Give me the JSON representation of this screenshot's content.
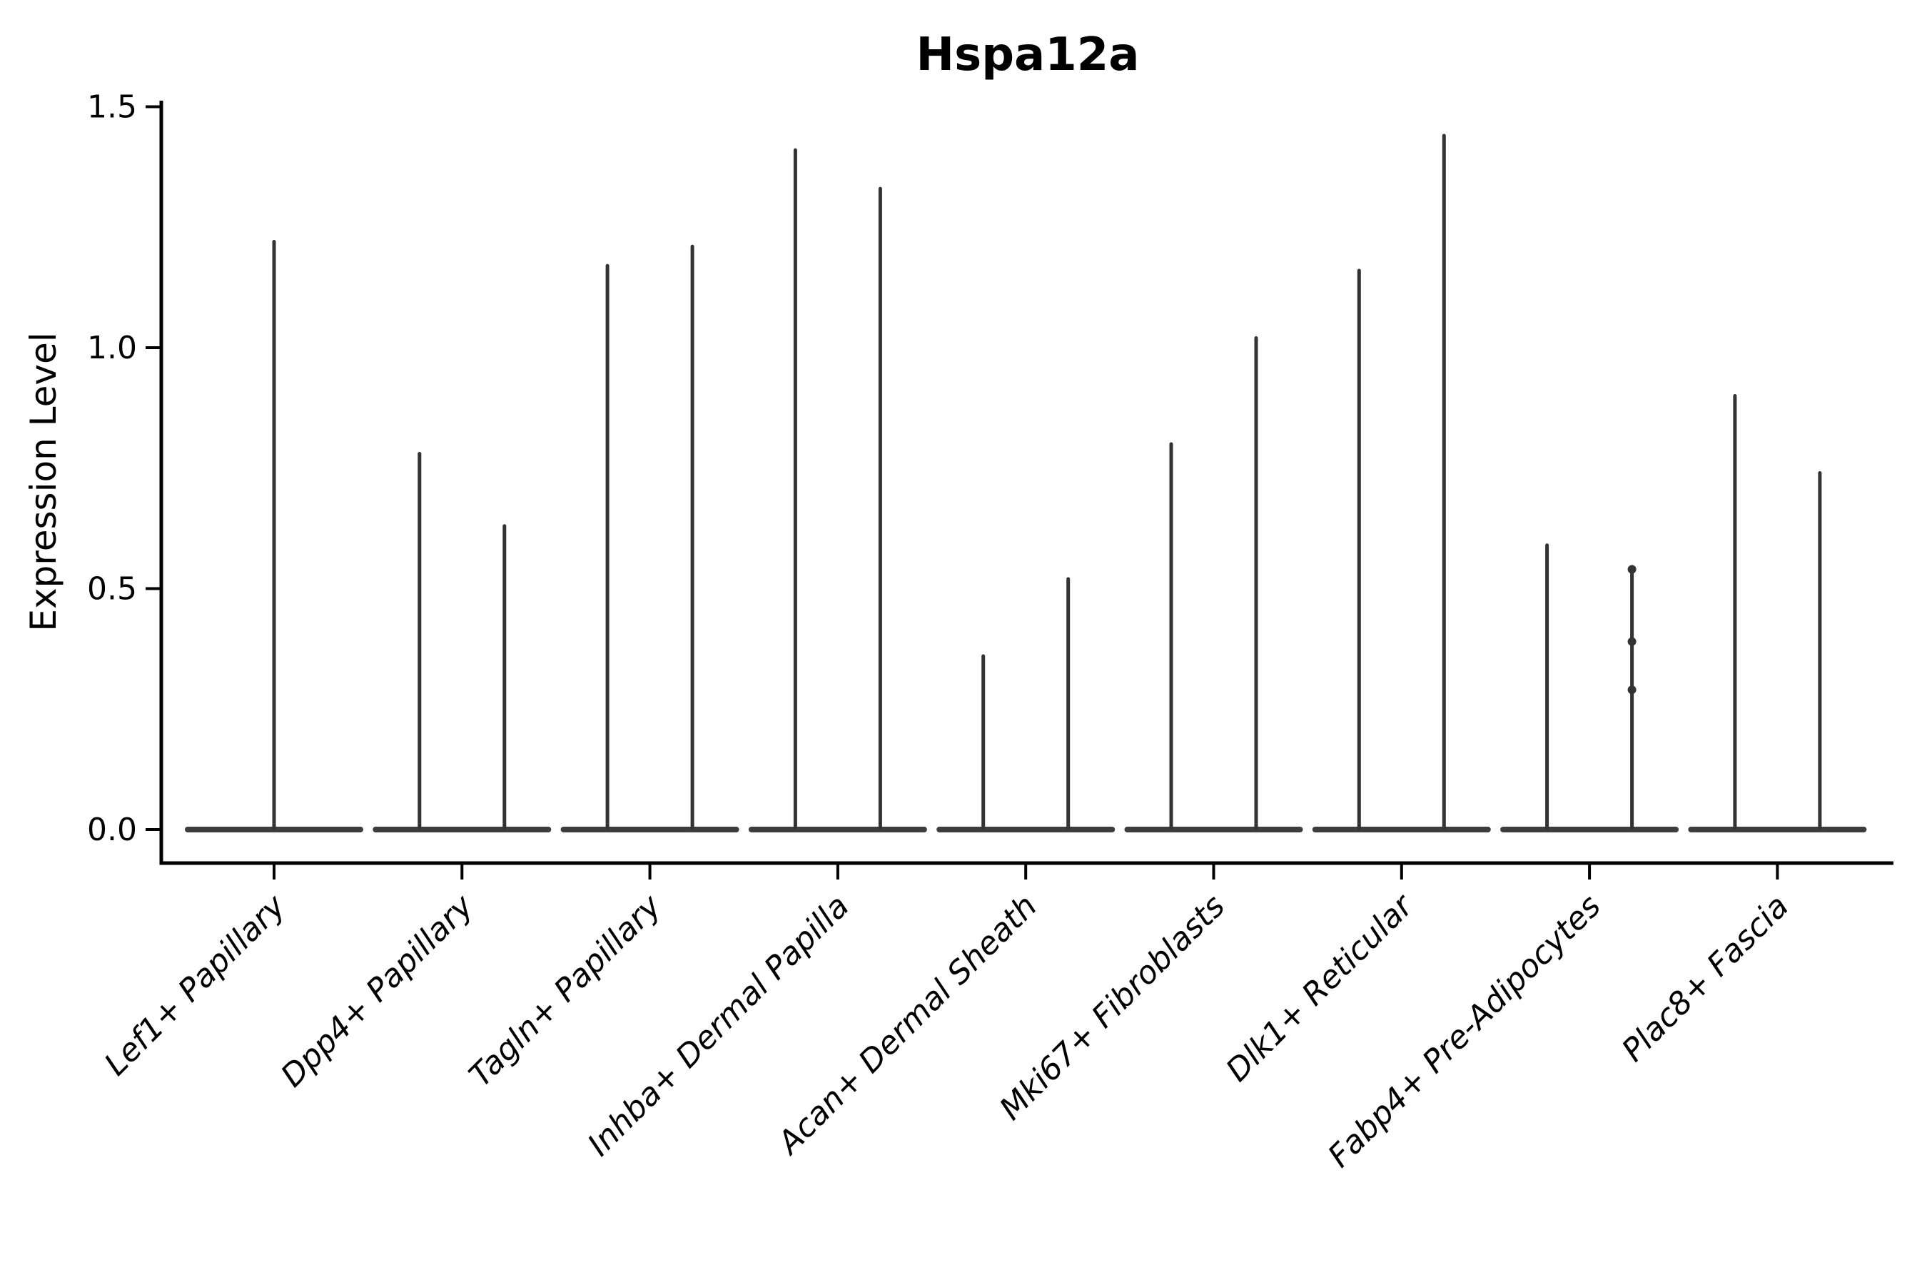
{
  "title": "Hspa12a",
  "y_axis": {
    "label": "Expression Level",
    "tick_labels": [
      "0.0",
      "0.5",
      "1.0",
      "1.5"
    ]
  },
  "chart_data": {
    "type": "violin",
    "title": "Hspa12a",
    "xlabel": "",
    "ylabel": "Expression Level",
    "ylim": [
      0,
      1.5
    ],
    "y_ticks": [
      0,
      0.5,
      1.0,
      1.5
    ],
    "y_tick_labels": [
      "0.0",
      "0.5",
      "1.0",
      "1.5"
    ],
    "grid": false,
    "legend": false,
    "categories": [
      "Lef1+ Papillary",
      "Dpp4+ Papillary",
      "Tagln+ Papillary",
      "Inhba+ Dermal Papilla",
      "Acan+ Dermal Sheath",
      "Mki67+ Fibroblasts",
      "Dlk1+ Reticular",
      "Fabp4+ Pre-Adipocytes",
      "Plac8+ Fascia"
    ],
    "description": "Violin plot; every violin is a flat bump at expression 0 plus one or two needle-thin spikes rising to the maximum expression value",
    "baseline_value": 0,
    "violins": [
      {
        "category": "Lef1+ Papillary",
        "spikes": [
          {
            "pos": "center",
            "max": 1.22
          }
        ]
      },
      {
        "category": "Dpp4+ Papillary",
        "spikes": [
          {
            "pos": "left",
            "max": 0.78
          },
          {
            "pos": "right",
            "max": 0.63
          }
        ]
      },
      {
        "category": "Tagln+ Papillary",
        "spikes": [
          {
            "pos": "left",
            "max": 1.17
          },
          {
            "pos": "right",
            "max": 1.21
          }
        ]
      },
      {
        "category": "Inhba+ Dermal Papilla",
        "spikes": [
          {
            "pos": "left",
            "max": 1.41
          },
          {
            "pos": "right",
            "max": 1.33
          }
        ]
      },
      {
        "category": "Acan+ Dermal Sheath",
        "spikes": [
          {
            "pos": "left",
            "max": 0.36
          },
          {
            "pos": "right",
            "max": 0.52
          }
        ]
      },
      {
        "category": "Mki67+ Fibroblasts",
        "spikes": [
          {
            "pos": "left",
            "max": 0.8
          },
          {
            "pos": "right",
            "max": 1.02
          }
        ]
      },
      {
        "category": "Dlk1+ Reticular",
        "spikes": [
          {
            "pos": "left",
            "max": 1.16
          },
          {
            "pos": "right",
            "max": 1.44
          }
        ]
      },
      {
        "category": "Fabp4+ Pre-Adipocytes",
        "spikes": [
          {
            "pos": "left",
            "max": 0.59
          },
          {
            "pos": "right",
            "max": 0.54
          }
        ]
      },
      {
        "category": "Plac8+ Fascia",
        "spikes": [
          {
            "pos": "left",
            "max": 0.9
          },
          {
            "pos": "right",
            "max": 0.74
          }
        ]
      }
    ],
    "overlay_points": [
      {
        "category": "Fabp4+ Pre-Adipocytes",
        "pos": "right",
        "values": [
          0.54,
          0.39,
          0.29
        ]
      }
    ],
    "style": {
      "violin_color": "#333333",
      "axis_color": "#000000",
      "text_color": "#000000",
      "background": "#ffffff"
    }
  }
}
